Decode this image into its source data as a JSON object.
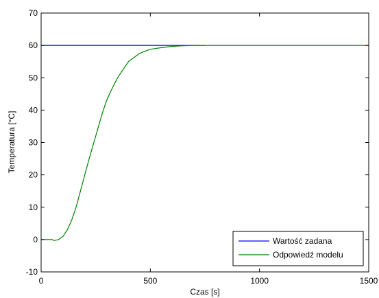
{
  "chart_data": {
    "type": "line",
    "title": "",
    "xlabel": "Czas [s]",
    "ylabel": "Temperatura [°C]",
    "xlim": [
      0,
      1500
    ],
    "ylim": [
      -10,
      70
    ],
    "xticks": [
      0,
      500,
      1000,
      1500
    ],
    "yticks": [
      -10,
      0,
      10,
      20,
      30,
      40,
      50,
      60,
      70
    ],
    "grid": false,
    "legend": "bottom-right",
    "series": [
      {
        "name": "Wartość zadana",
        "color": "#0000ff",
        "x": [
          0,
          750
        ],
        "y": [
          60,
          60
        ]
      },
      {
        "name": "Odpowiedź modelu",
        "color": "#008000",
        "x": [
          0,
          50,
          60,
          80,
          100,
          120,
          140,
          160,
          180,
          200,
          220,
          250,
          280,
          300,
          320,
          350,
          380,
          400,
          420,
          450,
          480,
          500,
          550,
          600,
          650,
          700,
          750,
          800,
          1000,
          1200,
          1500
        ],
        "y": [
          0,
          0,
          -0.3,
          0,
          1,
          3,
          6,
          10,
          15,
          20,
          25,
          32,
          39,
          43,
          46,
          50,
          53,
          55,
          56,
          57.5,
          58.3,
          58.8,
          59.3,
          59.7,
          59.9,
          60,
          60,
          60,
          60,
          60,
          60
        ]
      }
    ]
  }
}
